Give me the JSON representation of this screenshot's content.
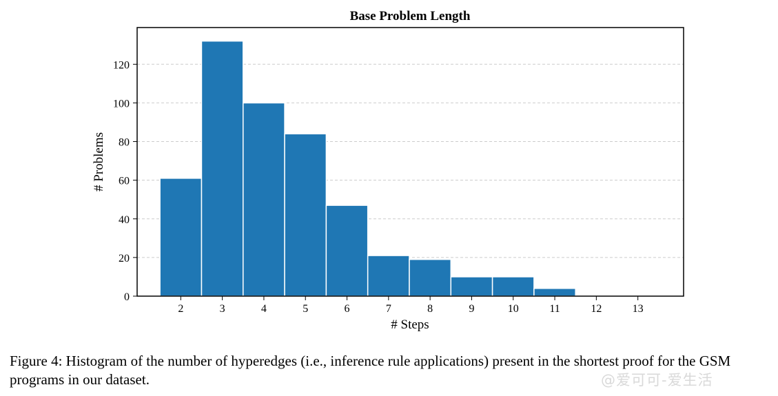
{
  "chart_data": {
    "type": "bar",
    "title": "Base Problem Length",
    "xlabel": "# Steps",
    "ylabel": "# Problems",
    "categories": [
      "2",
      "3",
      "4",
      "5",
      "6",
      "7",
      "8",
      "9",
      "10",
      "11",
      "12",
      "13"
    ],
    "x": [
      2,
      3,
      4,
      5,
      6,
      7,
      8,
      9,
      10,
      11,
      12,
      13
    ],
    "values": [
      61,
      132,
      100,
      84,
      47,
      21,
      19,
      10,
      10,
      4,
      0.5,
      0.5
    ],
    "yticks": [
      "0",
      "20",
      "40",
      "60",
      "80",
      "100",
      "120"
    ],
    "ylim": [
      0,
      139
    ],
    "xlim": [
      0.95,
      14.1
    ],
    "grid": "horizontal dashed",
    "bar_color": "#1f77b4"
  },
  "caption": "Figure 4: Histogram of the number of hyperedges (i.e., inference rule applications) present in the shortest proof for the GSM programs in our dataset.",
  "watermark": "@爱可可-爱生活"
}
